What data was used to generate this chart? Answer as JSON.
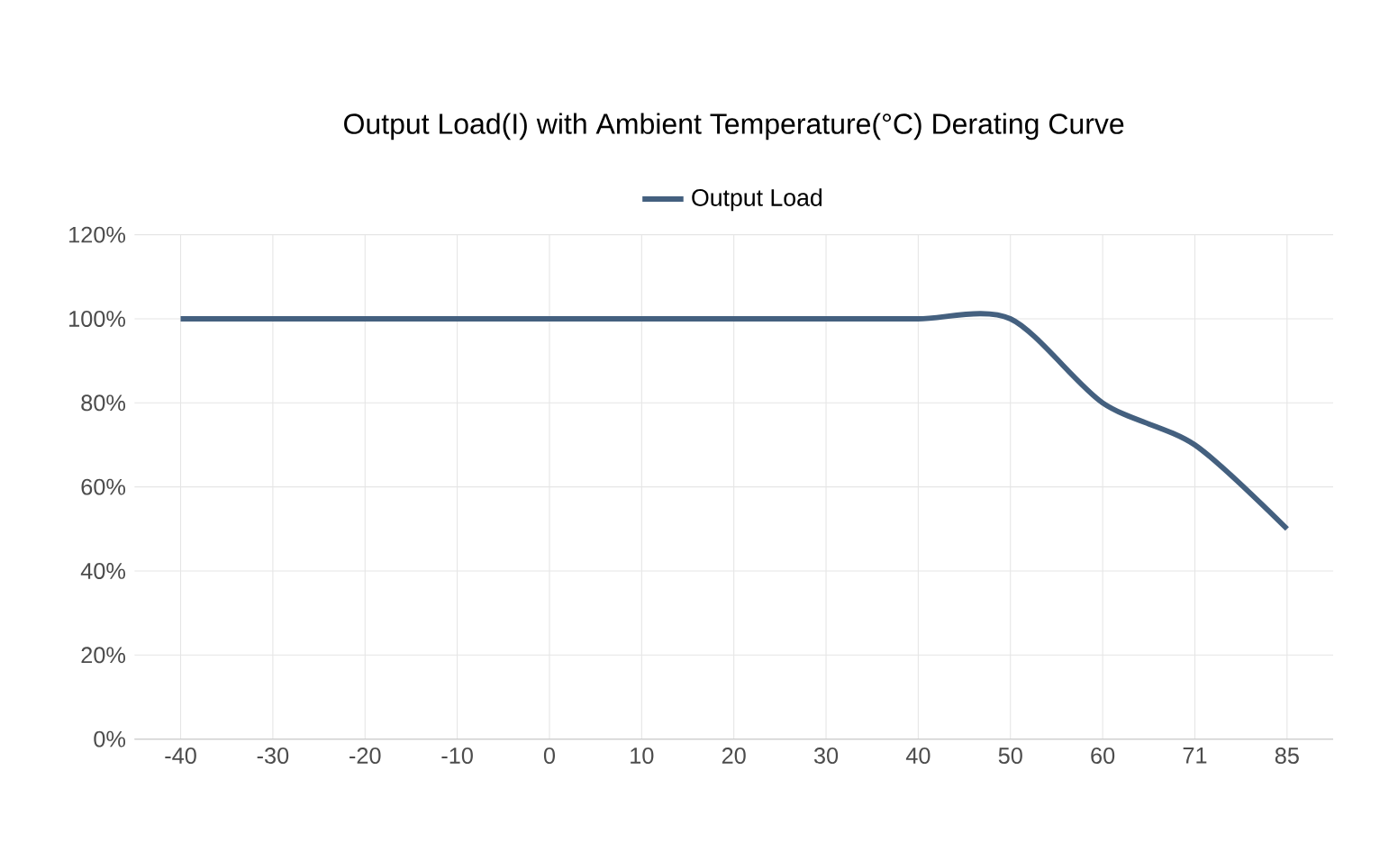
{
  "chart_data": {
    "type": "line",
    "title": "Output Load(I) with Ambient Temperature(°C) Derating Curve",
    "categories": [
      "-40",
      "-30",
      "-20",
      "-10",
      "0",
      "10",
      "20",
      "30",
      "40",
      "50",
      "60",
      "71",
      "85"
    ],
    "series": [
      {
        "name": "Output Load",
        "color": "#44607f",
        "values": [
          100,
          100,
          100,
          100,
          100,
          100,
          100,
          100,
          100,
          100,
          80,
          70,
          50
        ]
      }
    ],
    "ylim": [
      0,
      120
    ],
    "yticks": [
      {
        "value": 0,
        "label": "0%"
      },
      {
        "value": 20,
        "label": "20%"
      },
      {
        "value": 40,
        "label": "40%"
      },
      {
        "value": 60,
        "label": "60%"
      },
      {
        "value": 80,
        "label": "80%"
      },
      {
        "value": 100,
        "label": "100%"
      },
      {
        "value": 120,
        "label": "120%"
      }
    ],
    "grid": true,
    "legend": "top",
    "marker": "none",
    "line_style": "solid"
  }
}
